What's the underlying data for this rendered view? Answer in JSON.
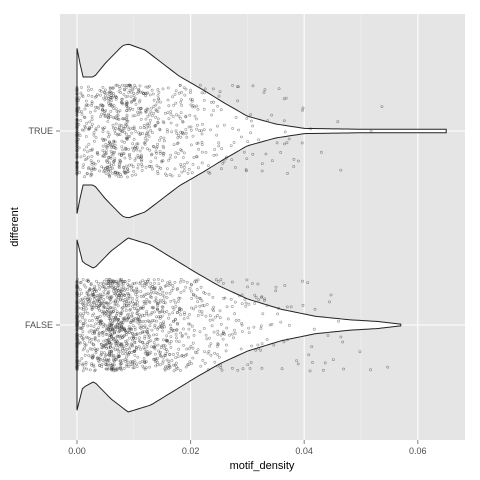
{
  "chart_data": {
    "type": "violin",
    "title": "",
    "xlabel": "motif_density",
    "ylabel": "different",
    "xlim": [
      -0.0025,
      0.068
    ],
    "x_ticks": [
      0.0,
      0.02,
      0.04,
      0.06
    ],
    "x_tick_labels": [
      "0.00",
      "0.02",
      "0.04",
      "0.06"
    ],
    "categories": [
      "FALSE",
      "TRUE"
    ],
    "grid": true,
    "panel_background": "#e5e5e5",
    "grid_color": "#ffffff",
    "violin_fill": "#ffffff",
    "violin_stroke": "#222222",
    "point_color": "#333333",
    "groups": [
      {
        "name": "TRUE",
        "density_profile": [
          [
            0.0,
            0.95
          ],
          [
            0.001,
            0.62
          ],
          [
            0.003,
            0.62
          ],
          [
            0.005,
            0.78
          ],
          [
            0.008,
            0.98
          ],
          [
            0.009,
            1.0
          ],
          [
            0.012,
            0.93
          ],
          [
            0.015,
            0.78
          ],
          [
            0.018,
            0.63
          ],
          [
            0.022,
            0.48
          ],
          [
            0.026,
            0.32
          ],
          [
            0.03,
            0.17
          ],
          [
            0.035,
            0.08
          ],
          [
            0.04,
            0.03
          ],
          [
            0.05,
            0.02
          ],
          [
            0.058,
            0.02
          ],
          [
            0.065,
            0.02
          ]
        ],
        "point_count_approx": 900,
        "x_max": 0.065
      },
      {
        "name": "FALSE",
        "density_profile": [
          [
            0.0,
            0.98
          ],
          [
            0.001,
            0.72
          ],
          [
            0.003,
            0.65
          ],
          [
            0.006,
            0.85
          ],
          [
            0.009,
            1.0
          ],
          [
            0.013,
            0.92
          ],
          [
            0.017,
            0.76
          ],
          [
            0.021,
            0.6
          ],
          [
            0.025,
            0.45
          ],
          [
            0.03,
            0.3
          ],
          [
            0.036,
            0.18
          ],
          [
            0.042,
            0.1
          ],
          [
            0.048,
            0.06
          ],
          [
            0.053,
            0.04
          ],
          [
            0.057,
            0.01
          ]
        ],
        "point_count_approx": 1500,
        "x_max": 0.057
      }
    ]
  }
}
